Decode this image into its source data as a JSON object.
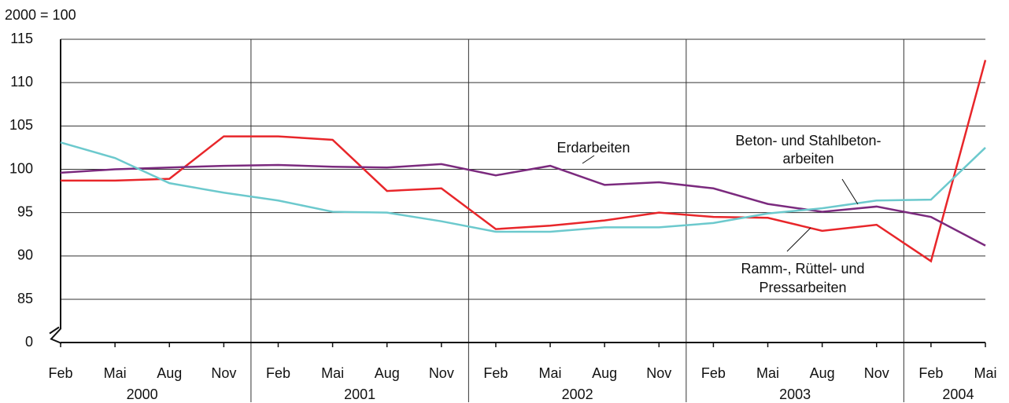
{
  "chart_data": {
    "type": "line",
    "ylabel": "2000  = 100",
    "groups": [
      {
        "label": "2000",
        "categories": [
          "Feb",
          "Mai",
          "Aug",
          "Nov"
        ]
      },
      {
        "label": "2001",
        "categories": [
          "Feb",
          "Mai",
          "Aug",
          "Nov"
        ]
      },
      {
        "label": "2002",
        "categories": [
          "Feb",
          "Mai",
          "Aug",
          "Nov"
        ]
      },
      {
        "label": "2003",
        "categories": [
          "Feb",
          "Mai",
          "Aug",
          "Nov"
        ]
      },
      {
        "label": "2004",
        "categories": [
          "Feb",
          "Mai"
        ]
      }
    ],
    "ylim": [
      0,
      115
    ],
    "y_break": 85,
    "yticks": [
      0,
      85,
      90,
      95,
      100,
      105,
      110,
      115
    ],
    "grid": true,
    "series": [
      {
        "name": [
          "Ramm-, Rüttel- und",
          "Pressarbeiten"
        ],
        "color": "#e8262a",
        "values": [
          98.7,
          98.7,
          98.9,
          103.8,
          103.8,
          103.4,
          97.5,
          97.8,
          93.1,
          93.5,
          94.1,
          95.0,
          94.5,
          94.4,
          92.9,
          93.6,
          89.4,
          112.6
        ]
      },
      {
        "name": [
          "Erdarbeiten"
        ],
        "color": "#7b2a7e",
        "values": [
          99.6,
          100.0,
          100.2,
          100.4,
          100.5,
          100.3,
          100.2,
          100.6,
          99.3,
          100.4,
          98.2,
          98.5,
          97.8,
          96.0,
          95.1,
          95.7,
          94.5,
          91.2
        ]
      },
      {
        "name": [
          "Beton- und Stahlbeton-",
          "arbeiten"
        ],
        "color": "#6cc9cd",
        "values": [
          103.1,
          101.3,
          98.4,
          97.3,
          96.4,
          95.1,
          95.0,
          94.0,
          92.8,
          92.8,
          93.3,
          93.3,
          93.8,
          94.9,
          95.5,
          96.4,
          96.5,
          102.5
        ]
      }
    ]
  }
}
